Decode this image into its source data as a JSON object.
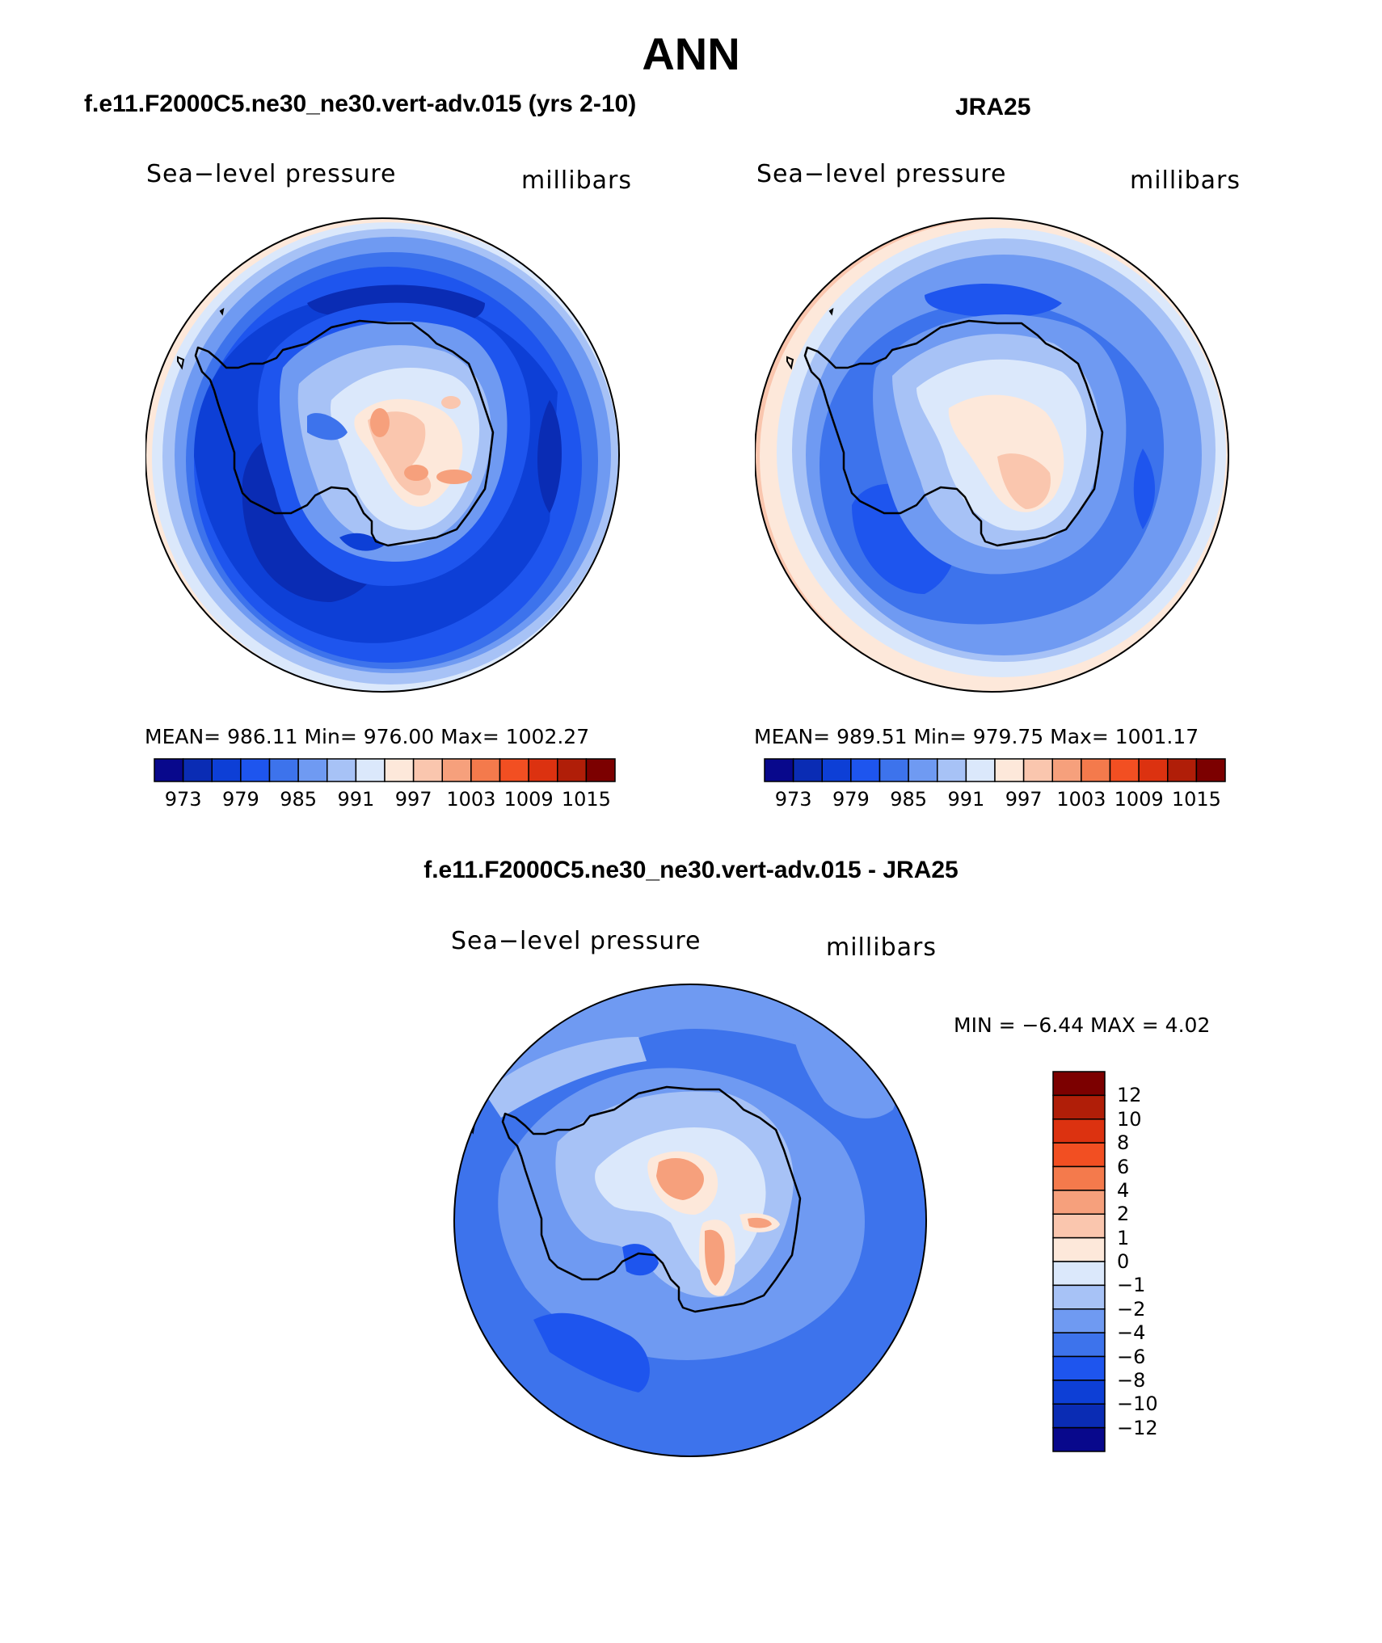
{
  "figure_title": "ANN",
  "colors": {
    "model_levels": [
      "#08088c",
      "#0a2cb4",
      "#0d3fd6",
      "#1e55ee",
      "#3d73ec",
      "#6f9af2",
      "#a7c2f6",
      "#dbe8fb",
      "#fde8da",
      "#fac6ae",
      "#f6a07c",
      "#f47a4c",
      "#f24f22",
      "#dc3210",
      "#b01e08",
      "#7c0000"
    ],
    "diff_levels": [
      "#08088c",
      "#0a2cb4",
      "#0d3fd6",
      "#1e55ee",
      "#3d73ec",
      "#6f9af2",
      "#a7c2f6",
      "#dbe8fb",
      "#fde8da",
      "#fac6ae",
      "#f6a07c",
      "#f47a4c",
      "#f24f22",
      "#dc3210",
      "#b01e08",
      "#7c0000"
    ]
  },
  "panels": {
    "model": {
      "heading": "f.e11.F2000C5.ne30_ne30.vert-adv.015 (yrs 2-10)",
      "left_label": "Sea−level pressure",
      "right_label": "millibars",
      "stats": "MEAN=  986.11    Min=  976.00    Max=  1002.27"
    },
    "obs": {
      "heading": "JRA25",
      "left_label": "Sea−level pressure",
      "right_label": "millibars",
      "stats": "MEAN=  989.51    Min=  979.75    Max=  1001.17"
    },
    "diff": {
      "heading": "f.e11.F2000C5.ne30_ne30.vert-adv.015 - JRA25",
      "left_label": "Sea−level pressure",
      "right_label": "millibars",
      "stats": "MIN =    −6.44  MAX =      4.02"
    }
  },
  "chart_data": [
    {
      "type": "heatmap",
      "title": "Sea−level pressure",
      "units": "millibars",
      "subtitle": "f.e11.F2000C5.ne30_ne30.vert-adv.015 (yrs 2-10)",
      "projection": "south polar stereographic",
      "mean": 986.11,
      "min": 976.0,
      "max": 1002.27,
      "colorbar_labels": [
        "973",
        "979",
        "985",
        "991",
        "997",
        "1003",
        "1009",
        "1015"
      ],
      "colorbar_levels": [
        970,
        973,
        976,
        979,
        982,
        985,
        988,
        991,
        994,
        997,
        1000,
        1003,
        1006,
        1009,
        1012,
        1015
      ]
    },
    {
      "type": "heatmap",
      "title": "Sea−level pressure",
      "units": "millibars",
      "subtitle": "JRA25",
      "projection": "south polar stereographic",
      "mean": 989.51,
      "min": 979.75,
      "max": 1001.17,
      "colorbar_labels": [
        "973",
        "979",
        "985",
        "991",
        "997",
        "1003",
        "1009",
        "1015"
      ],
      "colorbar_levels": [
        970,
        973,
        976,
        979,
        982,
        985,
        988,
        991,
        994,
        997,
        1000,
        1003,
        1006,
        1009,
        1012,
        1015
      ]
    },
    {
      "type": "heatmap",
      "title": "Sea−level pressure",
      "units": "millibars",
      "subtitle": "f.e11.F2000C5.ne30_ne30.vert-adv.015 - JRA25",
      "projection": "south polar stereographic",
      "min": -6.44,
      "max": 4.02,
      "colorbar_labels": [
        "12",
        "10",
        "8",
        "6",
        "4",
        "2",
        "1",
        "0",
        "−1",
        "−2",
        "−4",
        "−6",
        "−8",
        "−10",
        "−12"
      ]
    }
  ]
}
